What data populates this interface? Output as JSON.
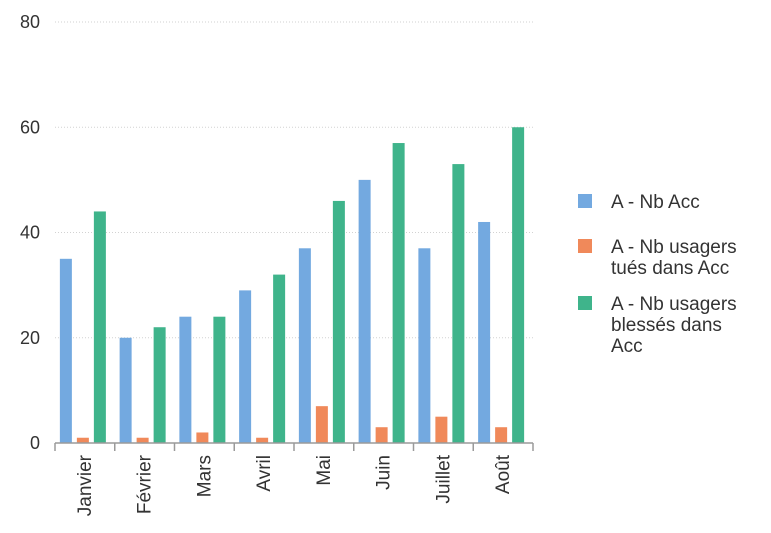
{
  "chart_data": {
    "type": "bar",
    "categories": [
      "Janvier",
      "Février",
      "Mars",
      "Avril",
      "Mai",
      "Juin",
      "Juillet",
      "Août"
    ],
    "series": [
      {
        "name": "A - Nb Acc",
        "values": [
          35,
          20,
          24,
          29,
          37,
          50,
          37,
          42
        ]
      },
      {
        "name": "A - Nb usagers tués dans Acc",
        "values": [
          1,
          1,
          2,
          1,
          7,
          3,
          5,
          3
        ]
      },
      {
        "name": "A - Nb usagers blessés dans Acc",
        "values": [
          44,
          22,
          24,
          32,
          46,
          57,
          53,
          60
        ]
      }
    ],
    "legend_lines": [
      [
        "A - Nb Acc"
      ],
      [
        "A - Nb usagers",
        "tués dans Acc"
      ],
      [
        "A - Nb usagers",
        "blessés dans",
        "Acc"
      ]
    ],
    "y_ticks": [
      0,
      20,
      40,
      60,
      80
    ],
    "ylim": [
      0,
      80
    ],
    "grid": true,
    "legend_position": "right",
    "colors": [
      "#73a9e0",
      "#f0895a",
      "#3fb48b"
    ],
    "title": "",
    "xlabel": "",
    "ylabel": ""
  }
}
